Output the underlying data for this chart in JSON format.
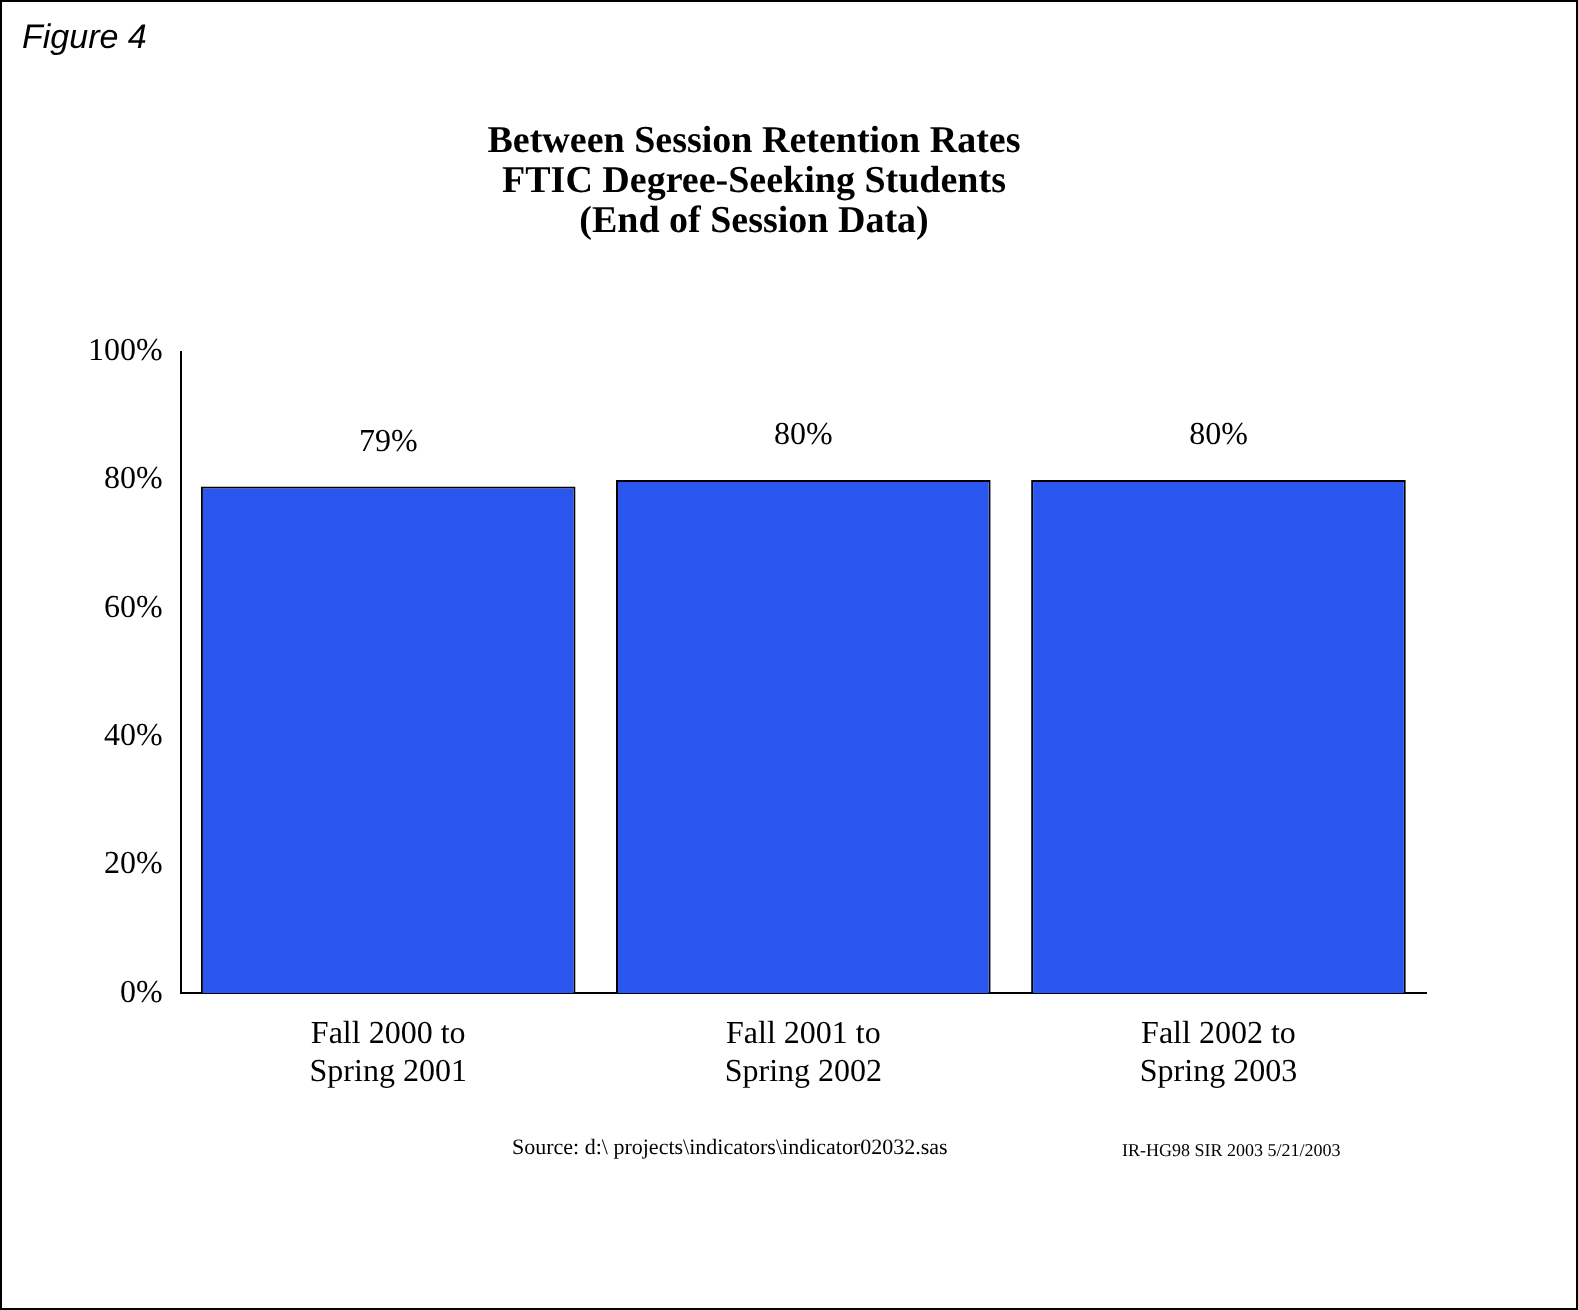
{
  "chart_data": {
    "type": "bar",
    "title": "Between Session Retention Rates\nFTIC Degree-Seeking Students\n(End of Session Data)",
    "categories": [
      "Fall 2000 to\nSpring 2001",
      "Fall 2001 to\nSpring 2002",
      "Fall 2002 to\nSpring 2003"
    ],
    "values": [
      79,
      80,
      80
    ],
    "value_labels": [
      "79%",
      "80%",
      "80%"
    ],
    "color": "#2a55ee",
    "ylim": [
      0,
      100
    ],
    "yticks": [
      {
        "value": 0,
        "label": "0%"
      },
      {
        "value": 20,
        "label": "20%"
      },
      {
        "value": 40,
        "label": "40%"
      },
      {
        "value": 60,
        "label": "60%"
      },
      {
        "value": 80,
        "label": "80%"
      },
      {
        "value": 100,
        "label": "100%"
      }
    ],
    "grid": false,
    "legend": false,
    "annotations": [
      "Figure 4",
      "Source: d:\\ projects\\indicators\\indicator02032.sas",
      "IR-HG98 SIR 2003  5/21/2003"
    ]
  }
}
